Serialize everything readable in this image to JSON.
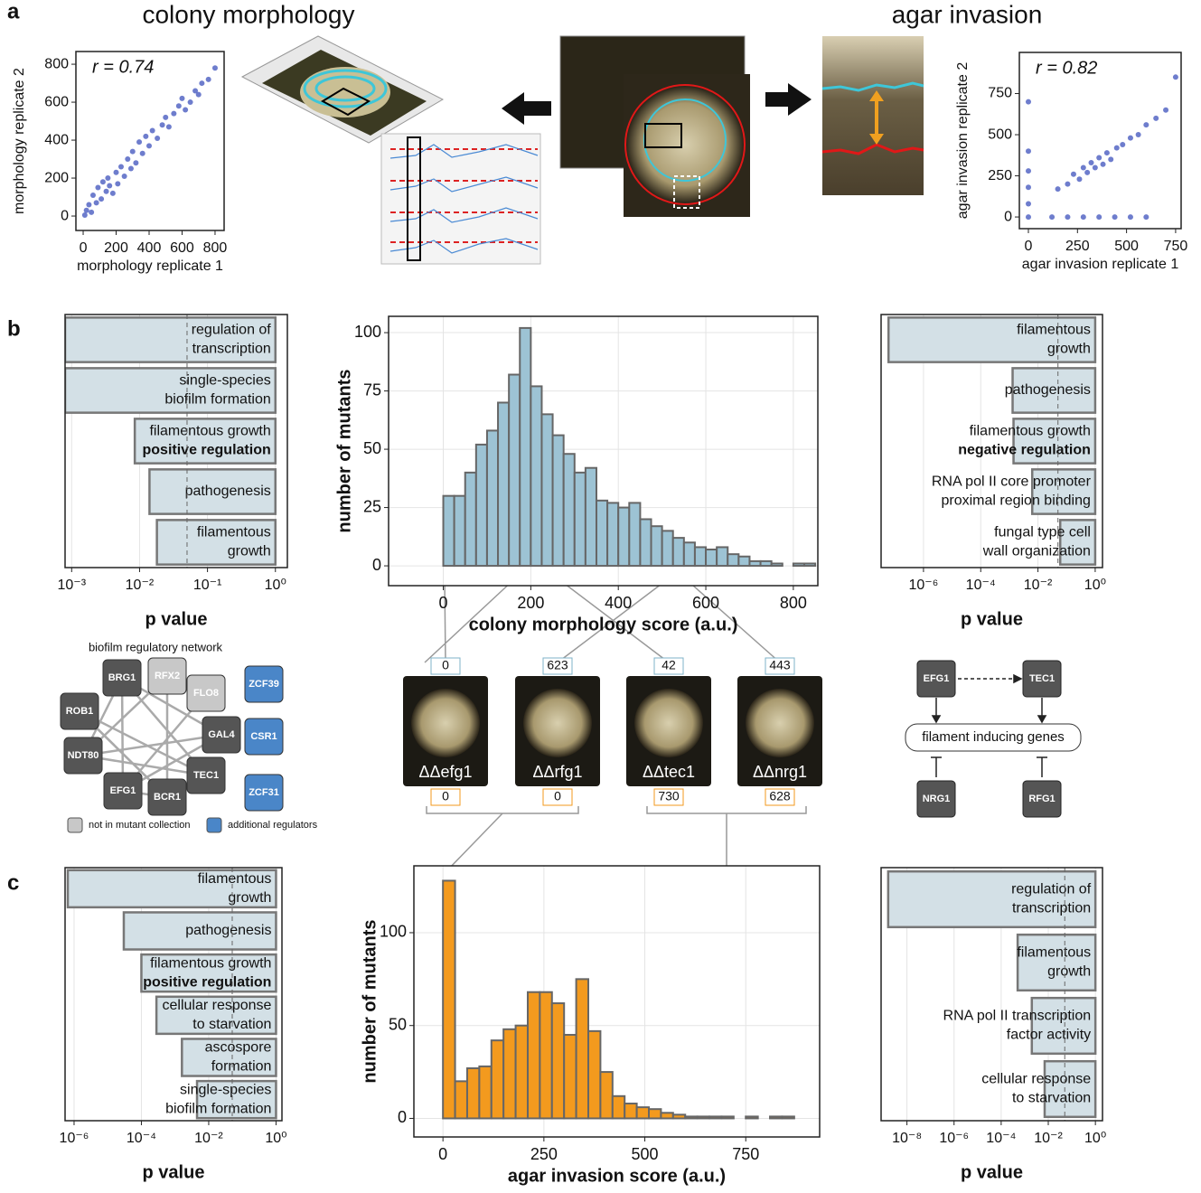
{
  "panels": {
    "a": "a",
    "b": "b",
    "c": "c"
  },
  "titles": {
    "morphology": "colony morphology",
    "invasion": "agar invasion"
  },
  "mutants": [
    {
      "name": "ΔΔefg1",
      "morphology_score": "0",
      "invasion_score": "0"
    },
    {
      "name": "ΔΔrfg1",
      "morphology_score": "623",
      "invasion_score": "0"
    },
    {
      "name": "ΔΔtec1",
      "morphology_score": "42",
      "invasion_score": "730"
    },
    {
      "name": "ΔΔnrg1",
      "morphology_score": "443",
      "invasion_score": "628"
    }
  ],
  "network": {
    "title": "biofilm regulatory network",
    "nodes": [
      "BRG1",
      "RFX2",
      "FLO8",
      "ROB1",
      "GAL4",
      "NDT80",
      "TEC1",
      "EFG1",
      "BCR1",
      "ZCF39",
      "CSR1",
      "ZCF31"
    ],
    "legend": [
      "not in mutant collection",
      "additional regulators"
    ]
  },
  "pathway": {
    "nodes": [
      "EFG1",
      "TEC1",
      "NRG1",
      "RFG1"
    ],
    "target": "filament inducing genes"
  },
  "chart_data": [
    {
      "type": "scatter",
      "annotation": "r = 0.74",
      "xlabel": "morphology replicate 1",
      "ylabel": "morphology replicate 2",
      "color": "#4a5cc0",
      "x": [
        10,
        20,
        35,
        50,
        60,
        80,
        90,
        110,
        120,
        140,
        150,
        160,
        180,
        200,
        210,
        230,
        250,
        270,
        290,
        300,
        320,
        340,
        360,
        380,
        400,
        420,
        450,
        480,
        500,
        520,
        550,
        580,
        600,
        620,
        650,
        680,
        700,
        720,
        760,
        800
      ],
      "values": [
        5,
        30,
        60,
        20,
        110,
        70,
        150,
        90,
        180,
        130,
        200,
        160,
        120,
        230,
        170,
        260,
        210,
        300,
        250,
        340,
        280,
        390,
        330,
        420,
        370,
        450,
        410,
        480,
        520,
        470,
        540,
        580,
        620,
        560,
        600,
        660,
        640,
        700,
        720,
        780
      ],
      "xlim": [
        -44,
        855
      ],
      "ylim": [
        -76,
        867
      ],
      "xticks": [
        0,
        200,
        400,
        600,
        800
      ],
      "yticks": [
        0,
        200,
        400,
        600,
        800
      ],
      "grid": false
    },
    {
      "type": "scatter",
      "annotation": "r = 0.82",
      "xlabel": "agar invasion replicate 1",
      "ylabel": "agar invasion replicate 2",
      "color": "#4a5cc0",
      "x": [
        0,
        0,
        0,
        0,
        0,
        120,
        200,
        280,
        360,
        440,
        520,
        600,
        150,
        200,
        230,
        260,
        280,
        300,
        320,
        340,
        360,
        380,
        400,
        420,
        450,
        480,
        520,
        560,
        600,
        650,
        700,
        750,
        0
      ],
      "values": [
        80,
        180,
        280,
        400,
        700,
        0,
        0,
        0,
        0,
        0,
        0,
        0,
        170,
        200,
        260,
        230,
        300,
        270,
        330,
        300,
        360,
        320,
        390,
        350,
        420,
        440,
        480,
        500,
        560,
        600,
        650,
        850,
        0
      ],
      "xlim": [
        -46,
        778
      ],
      "ylim": [
        -71,
        1000
      ],
      "xticks": [
        0,
        250,
        500,
        750
      ],
      "yticks": [
        0,
        250,
        500,
        750
      ],
      "grid": false
    },
    {
      "type": "bar",
      "xscale": "log",
      "xlabel": "p value",
      "color": "#d3e0e6",
      "threshold": 0.05,
      "grid": true,
      "categories": [
        [
          "regulation of",
          "transcription"
        ],
        [
          "single-species",
          "biofilm formation"
        ],
        [
          "filamentous growth",
          {
            "text": "positive regulation",
            "bold": true
          }
        ],
        [
          "pathogenesis"
        ],
        [
          "filamentous",
          "growth"
        ]
      ],
      "values": [
        0.0008,
        0.0008,
        0.0085,
        0.014,
        0.018
      ],
      "xlim": [
        0.0008,
        1.5
      ],
      "xticks": [
        {
          "value": 0.001,
          "label": "10⁻³"
        },
        {
          "value": 0.01,
          "label": "10⁻²"
        },
        {
          "value": 0.1,
          "label": "10⁻¹"
        },
        {
          "value": 1,
          "label": "10⁰"
        }
      ]
    },
    {
      "type": "histogram",
      "xlabel": "colony morphology score (a.u.)",
      "ylabel": "number of mutants",
      "color": "#9dc3d4",
      "grid": true,
      "bins": [
        0,
        25,
        50,
        75,
        100,
        125,
        150,
        175,
        200,
        225,
        250,
        275,
        300,
        325,
        350,
        375,
        400,
        425,
        450,
        475,
        500,
        525,
        550,
        575,
        600,
        625,
        650,
        675,
        700,
        725,
        750,
        775,
        800,
        825,
        850
      ],
      "values": [
        30,
        30,
        40,
        52,
        58,
        70,
        82,
        102,
        77,
        65,
        56,
        48,
        40,
        42,
        28,
        27,
        25,
        27,
        20,
        17,
        15,
        12,
        10,
        8,
        7,
        8,
        5,
        4,
        2,
        2,
        1,
        0,
        1,
        1
      ],
      "xlim": [
        -125,
        856
      ],
      "ylim": [
        -8.5,
        107
      ],
      "xticks": [
        0,
        200,
        400,
        600,
        800
      ],
      "yticks": [
        0,
        25,
        50,
        75,
        100
      ]
    },
    {
      "type": "bar",
      "xscale": "log",
      "xlabel": "p value",
      "color": "#d3e0e6",
      "threshold": 0.05,
      "grid": true,
      "categories": [
        [
          "filamentous",
          "growth"
        ],
        [
          "pathogenesis"
        ],
        [
          "filamentous growth",
          {
            "text": "negative regulation",
            "bold": true
          }
        ],
        [
          "RNA pol II core promoter",
          "proximal region binding"
        ],
        [
          "fungal type cell",
          "wall organization"
        ]
      ],
      "values": [
        6e-08,
        0.0013,
        0.0014,
        0.0063,
        0.06
      ],
      "xlim": [
        3.3e-08,
        1.8
      ],
      "xticks": [
        {
          "value": 1e-06,
          "label": "10⁻⁶"
        },
        {
          "value": 0.0001,
          "label": "10⁻⁴"
        },
        {
          "value": 0.01,
          "label": "10⁻²"
        },
        {
          "value": 1,
          "label": "10⁰"
        }
      ]
    },
    {
      "type": "bar",
      "xscale": "log",
      "xlabel": "p value",
      "color": "#d3e0e6",
      "threshold": 0.05,
      "grid": true,
      "categories": [
        [
          "filamentous",
          "growth"
        ],
        [
          "pathogenesis"
        ],
        [
          "filamentous growth",
          {
            "text": "positive regulation",
            "bold": true
          }
        ],
        [
          "cellular response",
          "to starvation"
        ],
        [
          "ascospore",
          "formation"
        ],
        [
          "single-species",
          "biofilm formation"
        ]
      ],
      "values": [
        6.5e-07,
        3e-05,
        0.0001,
        0.00028,
        0.0016,
        0.0045
      ],
      "xlim": [
        5.4e-07,
        1.5
      ],
      "xticks": [
        {
          "value": 1e-06,
          "label": "10⁻⁶"
        },
        {
          "value": 0.0001,
          "label": "10⁻⁴"
        },
        {
          "value": 0.01,
          "label": "10⁻²"
        },
        {
          "value": 1,
          "label": "10⁰"
        }
      ]
    },
    {
      "type": "histogram",
      "xlabel": "agar invasion score (a.u.)",
      "ylabel": "number of mutants",
      "color": "#f39a1e",
      "grid": true,
      "bins": [
        0,
        30,
        60,
        90,
        120,
        150,
        180,
        210,
        240,
        270,
        300,
        330,
        360,
        390,
        420,
        450,
        480,
        510,
        540,
        570,
        600,
        630,
        660,
        690,
        720,
        750,
        780,
        810,
        840,
        870
      ],
      "values": [
        128,
        20,
        27,
        28,
        42,
        48,
        50,
        68,
        68,
        62,
        45,
        75,
        47,
        25,
        12,
        8,
        6,
        5,
        3,
        2,
        1,
        1,
        1,
        1,
        0,
        1,
        0,
        1,
        1
      ],
      "xlim": [
        -72,
        933
      ],
      "ylim": [
        -10,
        136
      ],
      "xticks": [
        0,
        250,
        500,
        750
      ],
      "yticks": [
        0,
        50,
        100
      ]
    },
    {
      "type": "bar",
      "xscale": "log",
      "xlabel": "p value",
      "color": "#d3e0e6",
      "threshold": 0.05,
      "grid": true,
      "categories": [
        [
          "regulation of",
          "transcription"
        ],
        [
          "filamentous",
          "growth"
        ],
        [
          "RNA pol II transcription",
          "factor activity"
        ],
        [
          "cellular response",
          "to starvation"
        ]
      ],
      "values": [
        1.6e-09,
        0.0005,
        0.002,
        0.007
      ],
      "xlim": [
        8e-10,
        2
      ],
      "xticks": [
        {
          "value": 1e-08,
          "label": "10⁻⁸"
        },
        {
          "value": 1e-06,
          "label": "10⁻⁶"
        },
        {
          "value": 0.0001,
          "label": "10⁻⁴"
        },
        {
          "value": 0.01,
          "label": "10⁻²"
        },
        {
          "value": 1,
          "label": "10⁰"
        }
      ]
    }
  ]
}
